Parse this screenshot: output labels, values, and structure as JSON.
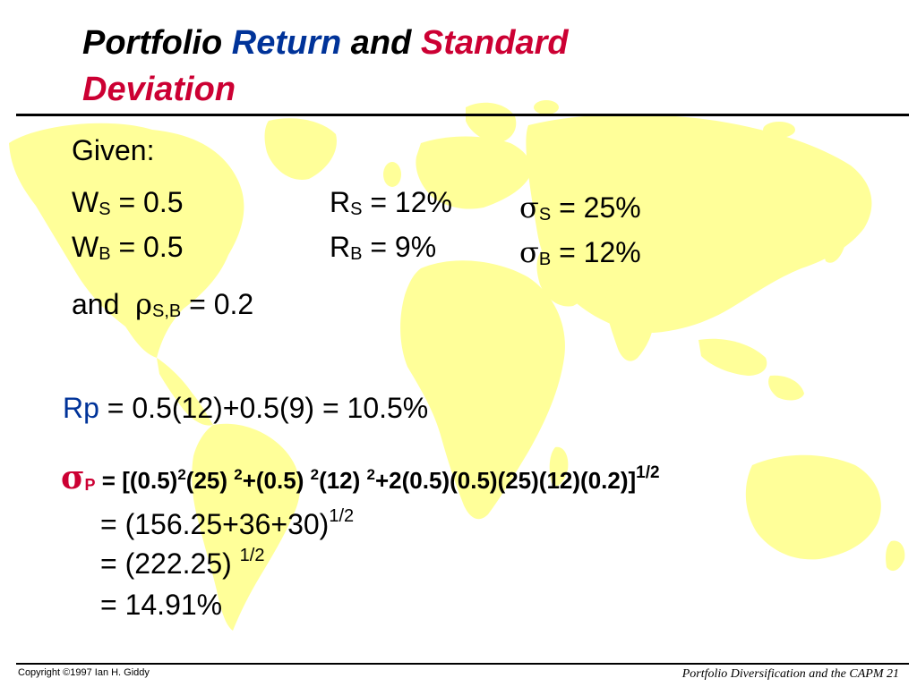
{
  "title": {
    "part1": "Portfolio ",
    "part2": "Return",
    "part3": " and ",
    "part4": "Standard",
    "part5": "Deviation",
    "color_blue": "#003399",
    "color_red": "#cc0033"
  },
  "given": {
    "label": "Given:",
    "ws": {
      "sym": "W",
      "sub": "S",
      "eq": " = 0.5"
    },
    "wb": {
      "sym": "W",
      "sub": "B",
      "eq": " = 0.5"
    },
    "rs": {
      "sym": "R",
      "sub": "S",
      "eq": " = 12%"
    },
    "rb": {
      "sym": "R",
      "sub": "B",
      "eq": " = 9%"
    },
    "ss": {
      "sym": "σ",
      "sub": "S",
      "eq": " = 25%"
    },
    "sb": {
      "sym": "σ",
      "sub": "B",
      "eq": " = 12%"
    },
    "rho": {
      "prefix": "and  ",
      "sym": "ρ",
      "sub": "S,B",
      "eq": " = 0.2"
    }
  },
  "rp": {
    "label": "Rp",
    "eq": " = 0.5(12)+0.5(9) = 10.5%"
  },
  "sigma_p": {
    "sym": "σ",
    "sub": "P",
    "t1": " = [(0.5)",
    "e1": "2",
    "t2": "(25) ",
    "e2": "2",
    "t3": "+(0.5) ",
    "e3": "2",
    "t4": "(12) ",
    "e4": "2",
    "t5": "+2(0.5)(0.5)(25)(12)(0.2)]",
    "e5": "1/2"
  },
  "steps": {
    "s1": "= (156.25+36+30)",
    "s1_exp": "1/2",
    "s2": "= (222.25) ",
    "s2_exp": "1/2",
    "s3": "= 14.91%"
  },
  "footer": {
    "copyright": "Copyright ©1997 Ian H. Giddy",
    "slide": "Portfolio Diversification and the CAPM 21"
  },
  "background": {
    "map_color": "#ffff99"
  }
}
